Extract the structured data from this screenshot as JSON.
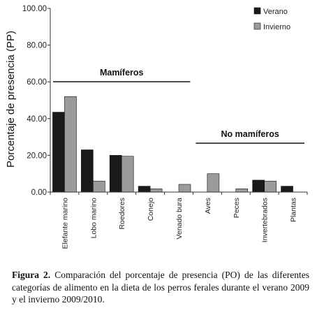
{
  "chart_data": {
    "type": "bar",
    "ylabel": "Porcentaje de presencia (PP)",
    "ylim": [
      0,
      100
    ],
    "yticks": [
      "0.00",
      "20.00",
      "40.00",
      "60.00",
      "80.00",
      "100.00"
    ],
    "categories": [
      "Elefante marino",
      "Lobo marino",
      "Roedores",
      "Conejo",
      "Venado bura",
      "Aves",
      "Peces",
      "Invertebrados",
      "Plantas"
    ],
    "series": [
      {
        "name": "Verano",
        "color": "#1a1a1a",
        "values": [
          43.5,
          23.0,
          20.0,
          3.2,
          0.0,
          0.0,
          0.0,
          6.5,
          3.2
        ]
      },
      {
        "name": "Invierno",
        "color": "#9b9b9b",
        "values": [
          52.0,
          6.0,
          19.5,
          1.8,
          4.2,
          10.0,
          1.8,
          6.0,
          0.0
        ]
      }
    ],
    "groups": [
      {
        "label": "Mamíferos",
        "from": 0,
        "to": 4
      },
      {
        "label": "No mamíferos",
        "from": 5,
        "to": 8
      }
    ],
    "legend": "top-right",
    "grid": false
  },
  "caption": {
    "label": "Figura 2.",
    "text": " Comparación del porcentaje de presencia (PO) de las diferentes categorías de alimento en la dieta de los perros ferales durante el verano 2009 y el invierno 2009/2010."
  }
}
